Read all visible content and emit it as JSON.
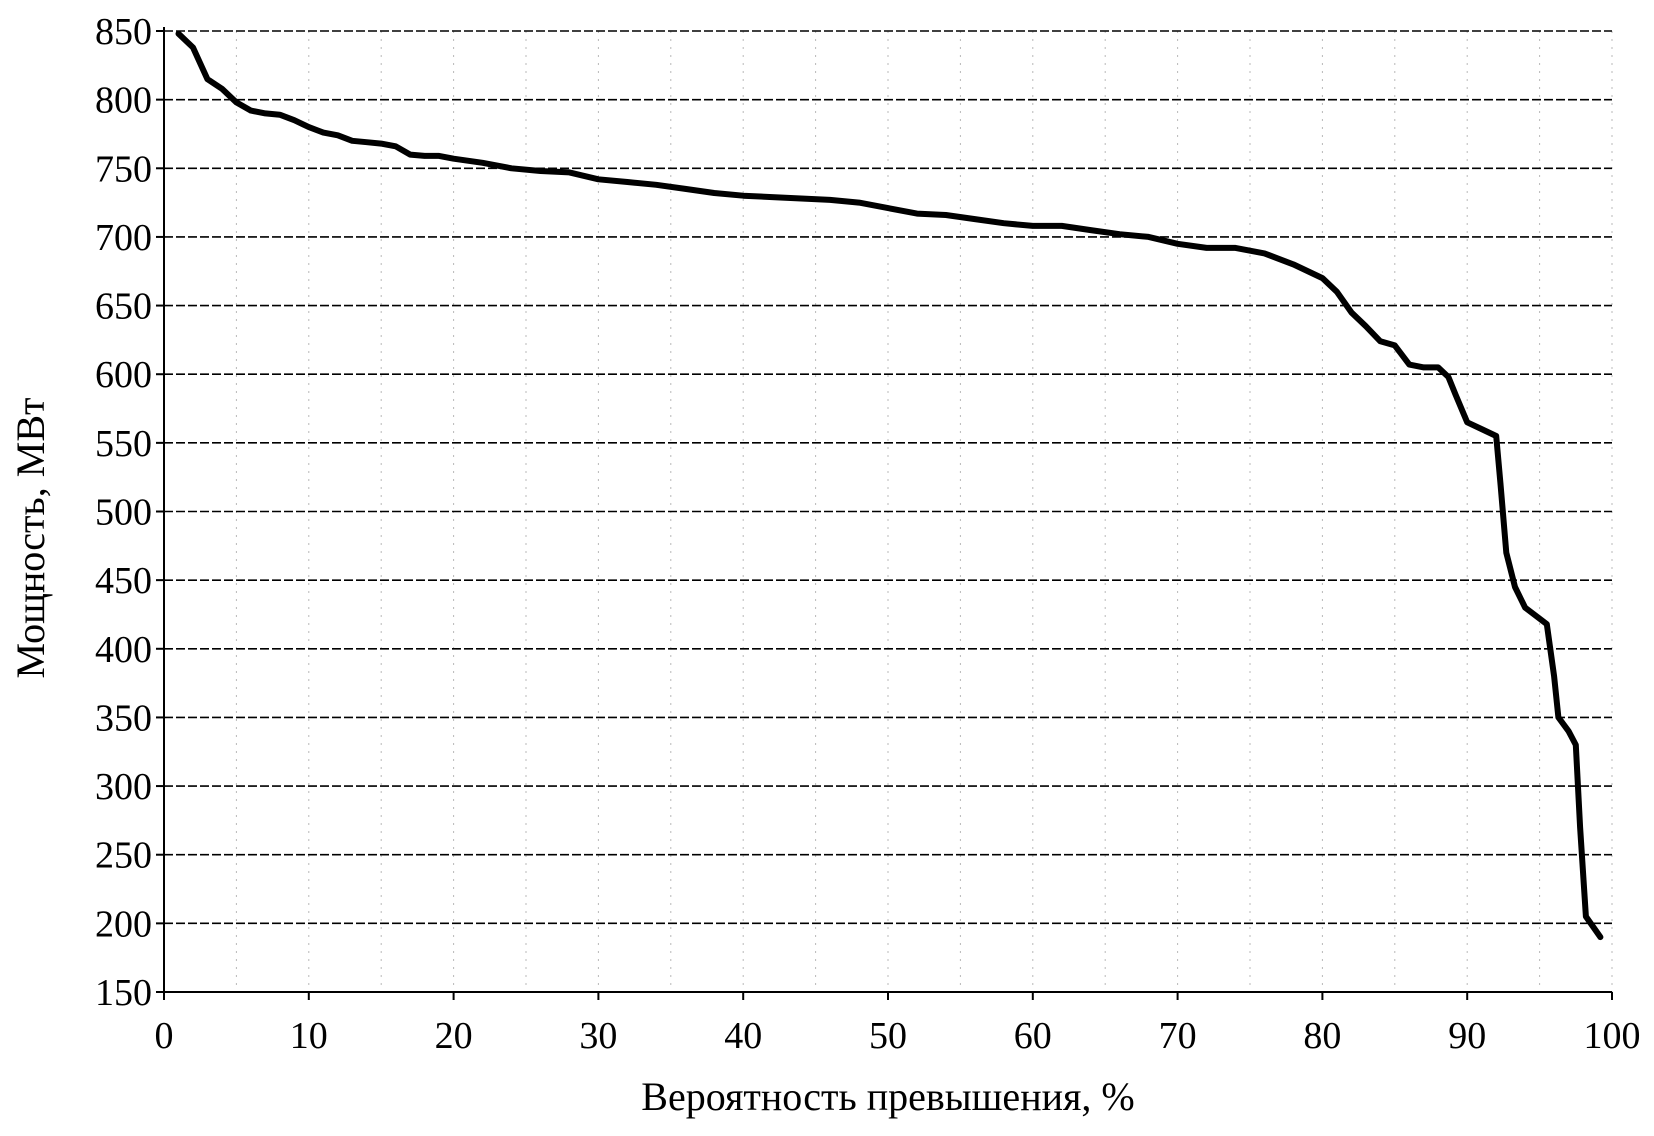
{
  "chart_data": {
    "type": "line",
    "xlabel": "Вероятность превышения, %",
    "ylabel": "Мощность, МВт",
    "xlim": [
      0,
      100
    ],
    "ylim": [
      150,
      850
    ],
    "x_ticks": [
      "0",
      "10",
      "20",
      "30",
      "40",
      "50",
      "60",
      "70",
      "80",
      "90",
      "100"
    ],
    "y_ticks": [
      "150",
      "200",
      "250",
      "300",
      "350",
      "400",
      "450",
      "500",
      "550",
      "600",
      "650",
      "700",
      "750",
      "800",
      "850"
    ],
    "grid": {
      "horizontal": true,
      "vertical_minor": true
    },
    "legend": "none",
    "colors": {
      "line": "#000000",
      "grid": "#000000",
      "background": "#ffffff"
    },
    "series": [
      {
        "x": [
          1,
          2,
          3,
          4,
          5,
          6,
          7,
          8,
          9,
          10,
          11,
          12,
          13,
          14,
          15,
          16,
          17,
          18,
          19,
          20,
          22,
          24,
          26,
          28,
          30,
          32,
          34,
          36,
          38,
          40,
          42,
          44,
          46,
          48,
          50,
          52,
          54,
          56,
          58,
          60,
          62,
          64,
          66,
          68,
          70,
          72,
          74,
          76,
          78,
          80,
          81,
          82,
          83,
          84,
          85,
          86,
          87,
          88,
          88.7,
          89.2,
          90,
          91,
          92,
          92.3,
          92.7,
          93.3,
          94,
          95,
          95.5,
          96,
          96.3,
          97,
          97.5,
          97.8,
          98.2,
          99.2
        ],
        "y": [
          848,
          838,
          815,
          808,
          798,
          792,
          790,
          789,
          785,
          780,
          776,
          774,
          770,
          769,
          768,
          766,
          760,
          759,
          759,
          757,
          754,
          750,
          748,
          747,
          742,
          740,
          738,
          735,
          732,
          730,
          729,
          728,
          727,
          725,
          721,
          717,
          716,
          713,
          710,
          708,
          708,
          705,
          702,
          700,
          695,
          692,
          692,
          688,
          680,
          670,
          660,
          645,
          635,
          624,
          621,
          607,
          605,
          605,
          598,
          585,
          565,
          560,
          555,
          520,
          470,
          445,
          430,
          422,
          418,
          380,
          350,
          340,
          330,
          270,
          205,
          190
        ]
      }
    ]
  }
}
